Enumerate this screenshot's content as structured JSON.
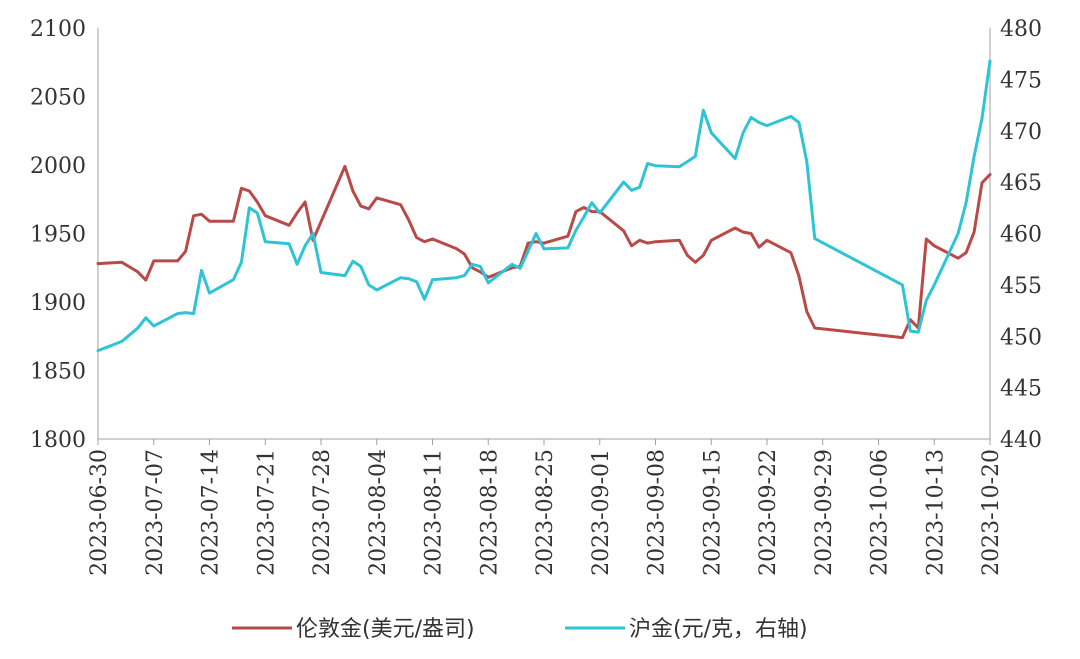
{
  "chart_data": {
    "type": "line",
    "x_start": "2023-06-30",
    "x_end": "2023-10-20",
    "x_tick_labels": [
      "2023-06-30",
      "2023-07-07",
      "2023-07-14",
      "2023-07-21",
      "2023-07-28",
      "2023-08-04",
      "2023-08-11",
      "2023-08-18",
      "2023-08-25",
      "2023-09-01",
      "2023-09-08",
      "2023-09-15",
      "2023-09-22",
      "2023-09-29",
      "2023-10-06",
      "2023-10-13",
      "2023-10-20"
    ],
    "y_left": {
      "min": 1800,
      "max": 2100,
      "ticks": [
        "1800",
        "1850",
        "1900",
        "1950",
        "2000",
        "2050",
        "2100"
      ]
    },
    "y_right": {
      "min": 440,
      "max": 480,
      "ticks": [
        "440",
        "445",
        "450",
        "455",
        "460",
        "465",
        "470",
        "475",
        "480"
      ]
    },
    "grid": false,
    "legend_position": "bottom",
    "series": [
      {
        "name": "伦敦金(美元/盎司)",
        "axis": "left",
        "color": "#b94a48",
        "points": [
          [
            "2023-06-30",
            1928
          ],
          [
            "2023-07-03",
            1929
          ],
          [
            "2023-07-05",
            1922
          ],
          [
            "2023-07-06",
            1916
          ],
          [
            "2023-07-07",
            1930
          ],
          [
            "2023-07-10",
            1930
          ],
          [
            "2023-07-11",
            1937
          ],
          [
            "2023-07-12",
            1963
          ],
          [
            "2023-07-13",
            1964
          ],
          [
            "2023-07-14",
            1959
          ],
          [
            "2023-07-17",
            1959
          ],
          [
            "2023-07-18",
            1983
          ],
          [
            "2023-07-19",
            1981
          ],
          [
            "2023-07-20",
            1973
          ],
          [
            "2023-07-21",
            1963
          ],
          [
            "2023-07-24",
            1956
          ],
          [
            "2023-07-25",
            1965
          ],
          [
            "2023-07-26",
            1973
          ],
          [
            "2023-07-27",
            1945
          ],
          [
            "2023-07-31",
            1999
          ],
          [
            "2023-08-01",
            1981
          ],
          [
            "2023-08-02",
            1970
          ],
          [
            "2023-08-03",
            1968
          ],
          [
            "2023-08-04",
            1976
          ],
          [
            "2023-08-07",
            1971
          ],
          [
            "2023-08-08",
            1960
          ],
          [
            "2023-08-09",
            1947
          ],
          [
            "2023-08-10",
            1944
          ],
          [
            "2023-08-11",
            1946
          ],
          [
            "2023-08-14",
            1939
          ],
          [
            "2023-08-15",
            1935
          ],
          [
            "2023-08-16",
            1925
          ],
          [
            "2023-08-17",
            1922
          ],
          [
            "2023-08-18",
            1918
          ],
          [
            "2023-08-21",
            1925
          ],
          [
            "2023-08-22",
            1926
          ],
          [
            "2023-08-23",
            1943
          ],
          [
            "2023-08-24",
            1944
          ],
          [
            "2023-08-25",
            1943
          ],
          [
            "2023-08-28",
            1948
          ],
          [
            "2023-08-29",
            1966
          ],
          [
            "2023-08-30",
            1969
          ],
          [
            "2023-08-31",
            1966
          ],
          [
            "2023-09-01",
            1966
          ],
          [
            "2023-09-04",
            1952
          ],
          [
            "2023-09-05",
            1941
          ],
          [
            "2023-09-06",
            1945
          ],
          [
            "2023-09-07",
            1943
          ],
          [
            "2023-09-08",
            1944
          ],
          [
            "2023-09-11",
            1945
          ],
          [
            "2023-09-12",
            1934
          ],
          [
            "2023-09-13",
            1929
          ],
          [
            "2023-09-14",
            1934
          ],
          [
            "2023-09-15",
            1945
          ],
          [
            "2023-09-18",
            1954
          ],
          [
            "2023-09-19",
            1951
          ],
          [
            "2023-09-20",
            1950
          ],
          [
            "2023-09-21",
            1940
          ],
          [
            "2023-09-22",
            1945
          ],
          [
            "2023-09-25",
            1936
          ],
          [
            "2023-09-26",
            1919
          ],
          [
            "2023-09-27",
            1893
          ],
          [
            "2023-09-28",
            1881
          ],
          [
            "2023-10-09",
            1874
          ],
          [
            "2023-10-10",
            1887
          ],
          [
            "2023-10-11",
            1881
          ],
          [
            "2023-10-12",
            1946
          ],
          [
            "2023-10-13",
            1941
          ],
          [
            "2023-10-16",
            1932
          ],
          [
            "2023-10-17",
            1936
          ],
          [
            "2023-10-18",
            1951
          ],
          [
            "2023-10-19",
            1987
          ],
          [
            "2023-10-20",
            1993
          ]
        ]
      },
      {
        "name": "沪金(元/克，右轴)",
        "axis": "right",
        "color": "#2ec4d6",
        "points": [
          [
            "2023-06-30",
            448.6
          ],
          [
            "2023-07-03",
            449.5
          ],
          [
            "2023-07-05",
            450.8
          ],
          [
            "2023-07-06",
            451.8
          ],
          [
            "2023-07-07",
            451.0
          ],
          [
            "2023-07-10",
            452.2
          ],
          [
            "2023-07-11",
            452.3
          ],
          [
            "2023-07-12",
            452.2
          ],
          [
            "2023-07-13",
            456.4
          ],
          [
            "2023-07-14",
            454.2
          ],
          [
            "2023-07-17",
            455.5
          ],
          [
            "2023-07-18",
            457.2
          ],
          [
            "2023-07-19",
            462.5
          ],
          [
            "2023-07-20",
            462.0
          ],
          [
            "2023-07-21",
            459.2
          ],
          [
            "2023-07-24",
            459.0
          ],
          [
            "2023-07-25",
            457.0
          ],
          [
            "2023-07-26",
            458.8
          ],
          [
            "2023-07-27",
            460.0
          ],
          [
            "2023-07-28",
            456.2
          ],
          [
            "2023-07-31",
            455.9
          ],
          [
            "2023-08-01",
            457.3
          ],
          [
            "2023-08-02",
            456.8
          ],
          [
            "2023-08-03",
            455.0
          ],
          [
            "2023-08-04",
            454.5
          ],
          [
            "2023-08-07",
            455.7
          ],
          [
            "2023-08-08",
            455.6
          ],
          [
            "2023-08-09",
            455.3
          ],
          [
            "2023-08-10",
            453.6
          ],
          [
            "2023-08-11",
            455.5
          ],
          [
            "2023-08-14",
            455.7
          ],
          [
            "2023-08-15",
            455.9
          ],
          [
            "2023-08-16",
            457.0
          ],
          [
            "2023-08-17",
            456.8
          ],
          [
            "2023-08-18",
            455.2
          ],
          [
            "2023-08-21",
            457.0
          ],
          [
            "2023-08-22",
            456.6
          ],
          [
            "2023-08-23",
            458.3
          ],
          [
            "2023-08-24",
            460.0
          ],
          [
            "2023-08-25",
            458.5
          ],
          [
            "2023-08-28",
            458.6
          ],
          [
            "2023-08-29",
            460.3
          ],
          [
            "2023-08-30",
            461.6
          ],
          [
            "2023-08-31",
            463.0
          ],
          [
            "2023-09-01",
            462.0
          ],
          [
            "2023-09-04",
            465.0
          ],
          [
            "2023-09-05",
            464.2
          ],
          [
            "2023-09-06",
            464.5
          ],
          [
            "2023-09-07",
            466.8
          ],
          [
            "2023-09-08",
            466.6
          ],
          [
            "2023-09-11",
            466.5
          ],
          [
            "2023-09-12",
            467.0
          ],
          [
            "2023-09-13",
            467.5
          ],
          [
            "2023-09-14",
            472.0
          ],
          [
            "2023-09-15",
            469.8
          ],
          [
            "2023-09-18",
            467.3
          ],
          [
            "2023-09-19",
            469.8
          ],
          [
            "2023-09-20",
            471.3
          ],
          [
            "2023-09-21",
            470.8
          ],
          [
            "2023-09-22",
            470.5
          ],
          [
            "2023-09-25",
            471.4
          ],
          [
            "2023-09-26",
            470.8
          ],
          [
            "2023-09-27",
            467.0
          ],
          [
            "2023-09-28",
            459.5
          ],
          [
            "2023-10-09",
            455.0
          ],
          [
            "2023-10-10",
            450.5
          ],
          [
            "2023-10-11",
            450.4
          ],
          [
            "2023-10-12",
            453.5
          ],
          [
            "2023-10-13",
            455.0
          ],
          [
            "2023-10-16",
            460.0
          ],
          [
            "2023-10-17",
            463.0
          ],
          [
            "2023-10-18",
            467.5
          ],
          [
            "2023-10-19",
            471.2
          ],
          [
            "2023-10-20",
            476.8
          ]
        ]
      }
    ]
  }
}
